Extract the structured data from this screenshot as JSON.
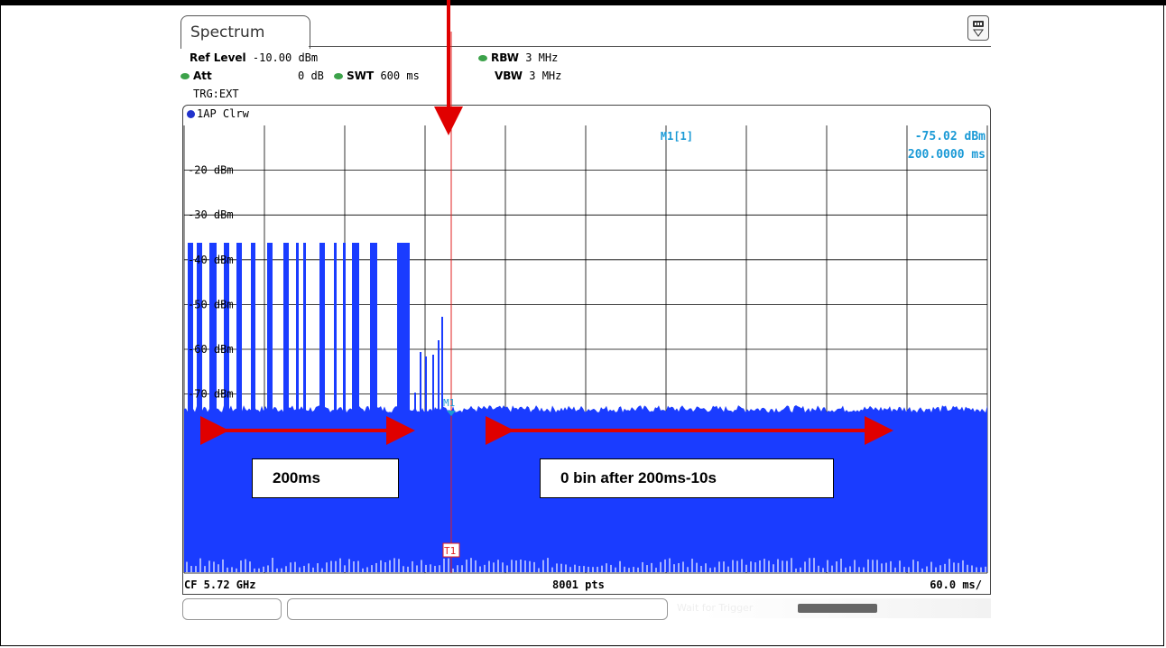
{
  "window": {
    "tab_label": "Spectrum",
    "menu_icon": "softkey-menu-icon"
  },
  "settings": {
    "ref_level_label": "Ref Level",
    "ref_level_value": "-10.00 dBm",
    "att_label": "Att",
    "att_value": "0 dB",
    "swt_label": "SWT",
    "swt_value": "600 ms",
    "rbw_label": "RBW",
    "rbw_value": "3 MHz",
    "vbw_label": "VBW",
    "vbw_value": "3 MHz",
    "trigger": "TRG:EXT"
  },
  "trace": {
    "label": "1AP Clrw"
  },
  "marker": {
    "name": "M1[1]",
    "level": "-75.02 dBm",
    "time": "200.0000 ms",
    "plot_label": "M1",
    "trigger_label": "T1"
  },
  "y_axis": {
    "labels": [
      "-20 dBm",
      "-30 dBm",
      "-40 dBm",
      "-50 dBm",
      "-60 dBm",
      "-70 dBm"
    ]
  },
  "footer": {
    "center_freq": "CF 5.72 GHz",
    "points": "8001 pts",
    "time_div": "60.0 ms/"
  },
  "status": {
    "message": "Wait for Trigger"
  },
  "annotations": {
    "left_box": "200ms",
    "right_box": "0 bin after 200ms-10s"
  },
  "colors": {
    "trace": "#1a3cff",
    "marker": "#1b9ad6",
    "annotation": "#e00000",
    "led": "#3ca24a"
  }
}
